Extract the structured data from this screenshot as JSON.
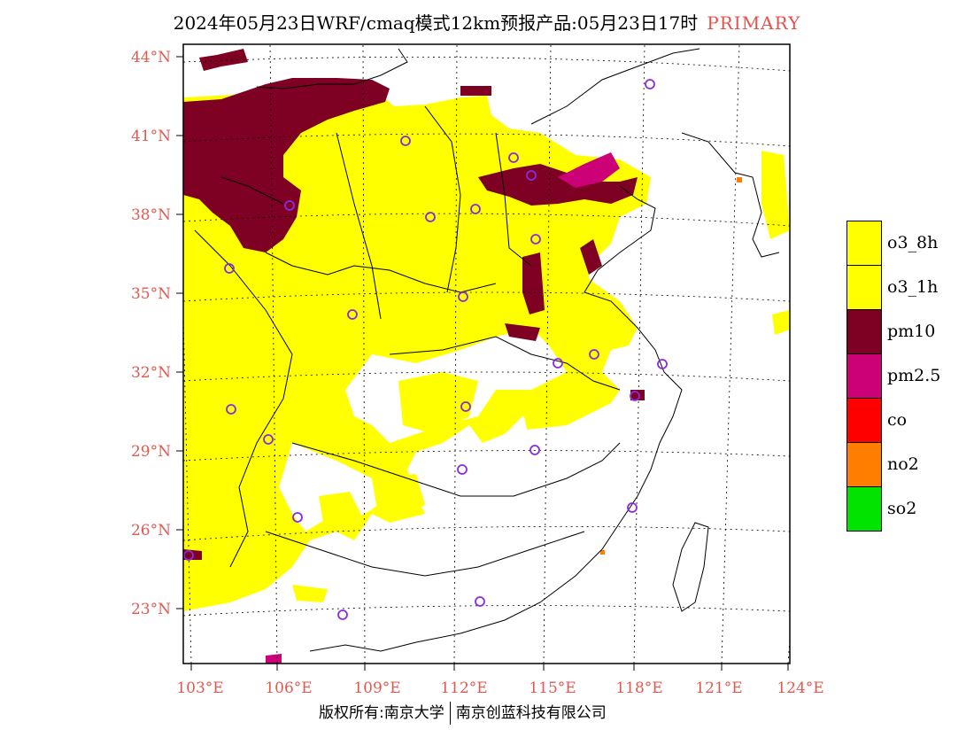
{
  "title": {
    "main": "2024年05月23日WRF/cmaq模式12km预报产品:05月23日17时",
    "tag": "PRIMARY"
  },
  "axes": {
    "lat_labels": [
      "44°N",
      "41°N",
      "38°N",
      "35°N",
      "32°N",
      "29°N",
      "26°N",
      "23°N"
    ],
    "lon_labels": [
      "103°E",
      "106°E",
      "109°E",
      "112°E",
      "115°E",
      "118°E",
      "121°E",
      "124°E"
    ]
  },
  "legend": [
    {
      "label": "o3_8h",
      "color": "#ffff00"
    },
    {
      "label": "o3_1h",
      "color": "#ffff00"
    },
    {
      "label": "pm10",
      "color": "#7e0023"
    },
    {
      "label": "pm2.5",
      "color": "#cc0077"
    },
    {
      "label": "co",
      "color": "#ff0000"
    },
    {
      "label": "no2",
      "color": "#ff7e00"
    },
    {
      "label": "so2",
      "color": "#00e400"
    }
  ],
  "footer": {
    "left": "版权所有:南京大学",
    "right": "南京创蓝科技有限公司"
  },
  "colors": {
    "yellow": "#ffff00",
    "pm10": "#7e0023",
    "pm25": "#cc0077",
    "station_ring": "#8a2be2",
    "axis_label": "#e05a52"
  }
}
